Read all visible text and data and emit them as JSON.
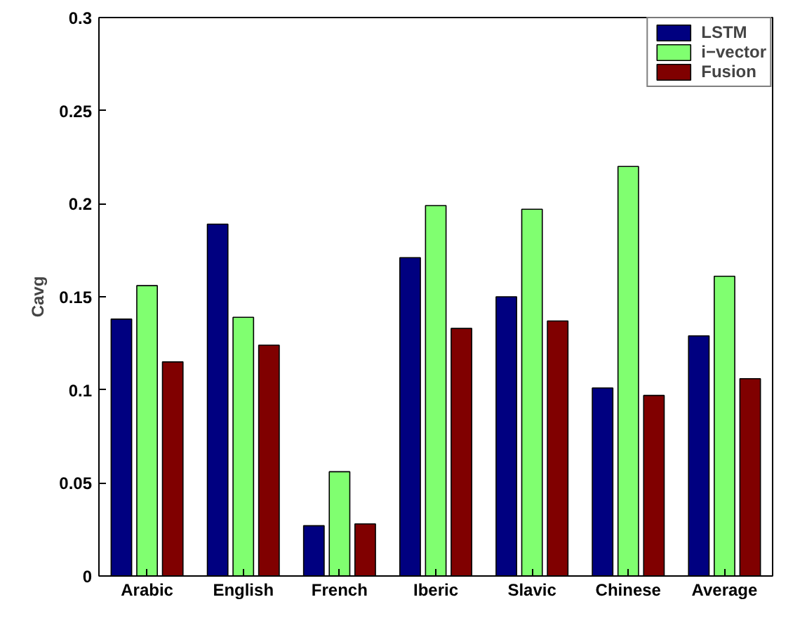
{
  "chart_data": {
    "type": "bar",
    "ylabel": "Cavg",
    "categories": [
      "Arabic",
      "English",
      "French",
      "Iberic",
      "Slavic",
      "Chinese",
      "Average"
    ],
    "series": [
      {
        "name": "LSTM",
        "color": "#000080",
        "values": [
          0.138,
          0.189,
          0.027,
          0.171,
          0.15,
          0.101,
          0.129
        ]
      },
      {
        "name": "i−vector",
        "color": "#80ff70",
        "values": [
          0.156,
          0.139,
          0.056,
          0.199,
          0.197,
          0.22,
          0.161
        ]
      },
      {
        "name": "Fusion",
        "color": "#800000",
        "values": [
          0.115,
          0.124,
          0.028,
          0.133,
          0.137,
          0.097,
          0.106
        ]
      }
    ],
    "ylim": [
      0,
      0.3
    ],
    "yticks": [
      0,
      0.05,
      0.1,
      0.15,
      0.2,
      0.25,
      0.3
    ],
    "grid": false,
    "legend": "top right"
  }
}
